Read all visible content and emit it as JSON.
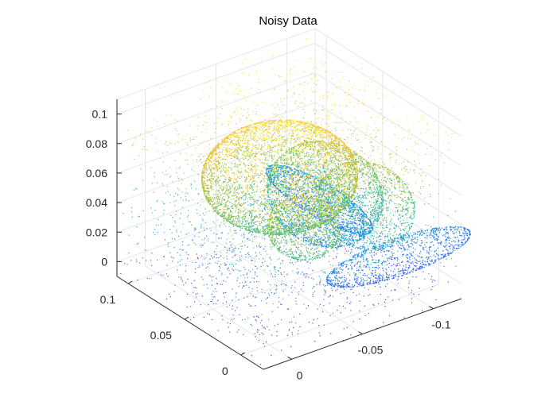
{
  "chart_data": {
    "type": "scatter",
    "title": "Noisy Data",
    "xlabel": "",
    "ylabel": "",
    "zlabel": "",
    "view": "3d",
    "grid": true,
    "colormap": [
      "#3e26a8",
      "#2f5df9",
      "#1f9ad9",
      "#21b8a9",
      "#66c45b",
      "#c6bf34",
      "#fdc23b",
      "#f9f90f"
    ],
    "color_by": "z",
    "x_ticks": [
      -0.1,
      -0.05,
      0
    ],
    "y_ticks": [
      0,
      0.05,
      0.1
    ],
    "z_ticks": [
      0,
      0.02,
      0.04,
      0.06,
      0.08,
      0.1
    ],
    "x_tick_labels": [
      "-0.1",
      "-0.05",
      "0"
    ],
    "y_tick_labels": [
      "0",
      "0.05",
      "0.1"
    ],
    "z_tick_labels": [
      "0",
      "0.02",
      "0.04",
      "0.06",
      "0.08",
      "0.1"
    ],
    "xlim": [
      -0.12,
      0.02
    ],
    "ylim": [
      -0.02,
      0.11
    ],
    "zlim": [
      -0.01,
      0.11
    ],
    "series": [
      {
        "kind": "noise",
        "count": 3000
      },
      {
        "kind": "surface-points",
        "shape": "bunny",
        "count": 9000
      }
    ]
  }
}
